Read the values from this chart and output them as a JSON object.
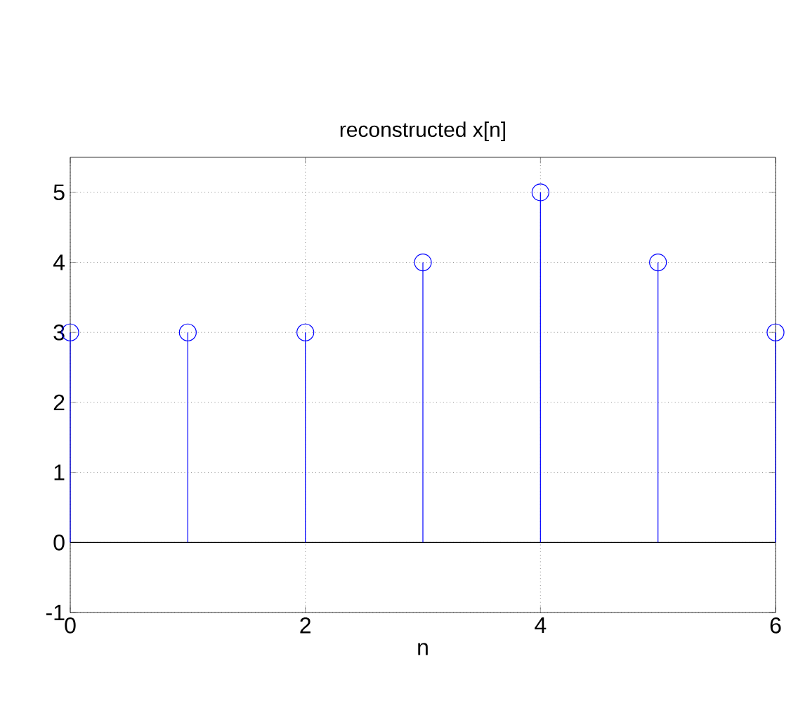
{
  "chart_data": {
    "type": "lollipop",
    "title": "reconstructed x[n]",
    "xlabel": "n",
    "x": [
      0,
      1,
      2,
      3,
      4,
      5,
      6
    ],
    "values": [
      3,
      3,
      3,
      4,
      5,
      4,
      3
    ],
    "color": "#0000ff",
    "marker": "circle",
    "grid": true,
    "xlim": [
      0,
      6
    ],
    "ylim": [
      -1,
      5.5
    ],
    "xticks": [
      0,
      2,
      4,
      6
    ],
    "yticks": [
      -1,
      0,
      1,
      2,
      3,
      4,
      5
    ]
  }
}
